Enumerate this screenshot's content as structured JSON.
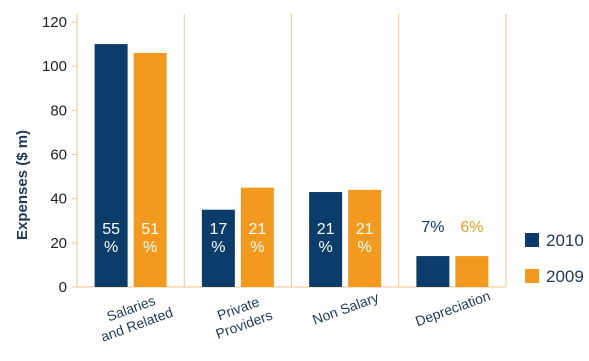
{
  "chart_data": {
    "type": "bar",
    "ylabel": "Expenses ($ m)",
    "ylim": [
      0,
      120
    ],
    "yticks": [
      0,
      20,
      40,
      60,
      80,
      100,
      120
    ],
    "categories": [
      [
        "Salaries",
        "and Related"
      ],
      [
        "Private",
        "Providers"
      ],
      [
        "Non Salary"
      ],
      [
        "Depreciation"
      ]
    ],
    "series": [
      {
        "name": "2010",
        "color": "#0b3d6b",
        "values": [
          110,
          35,
          43,
          14
        ],
        "labels": [
          [
            "55",
            "%"
          ],
          [
            "17",
            "%"
          ],
          [
            "21",
            "%"
          ],
          [
            "7%"
          ]
        ]
      },
      {
        "name": "2009",
        "color": "#f39a1e",
        "values": [
          106,
          45,
          44,
          14
        ],
        "labels": [
          [
            "51",
            "%"
          ],
          [
            "21",
            "%"
          ],
          [
            "21",
            "%"
          ],
          [
            "6%"
          ]
        ]
      }
    ],
    "grid": "vertical",
    "legend": "right"
  }
}
